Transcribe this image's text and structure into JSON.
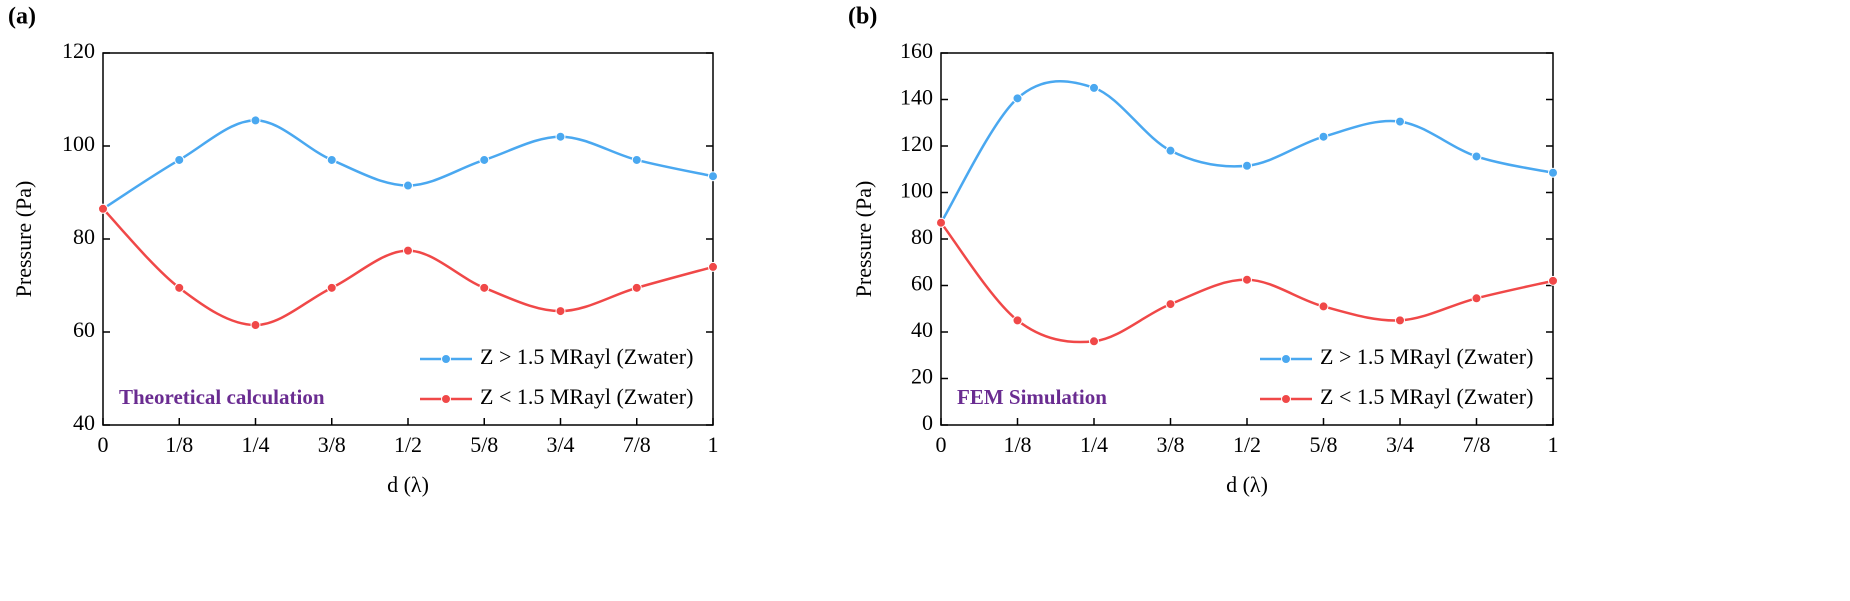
{
  "chart_data": [
    {
      "type": "line",
      "panel_label": "(a)",
      "xlabel": "d (λ)",
      "ylabel": "Pressure (Pa)",
      "annotation": "Theoretical calculation",
      "categories": [
        "0",
        "1/8",
        "1/4",
        "3/8",
        "1/2",
        "5/8",
        "3/4",
        "7/8",
        "1"
      ],
      "ylim": [
        40,
        120
      ],
      "yticks": [
        40,
        60,
        80,
        100,
        120
      ],
      "legend": "lower right",
      "series": [
        {
          "name": "Z > 1.5 MRayl (Zwater)",
          "color": "#4aa8f0",
          "values": [
            86.5,
            97,
            105.5,
            97,
            91.5,
            97,
            102,
            97,
            93.5
          ]
        },
        {
          "name": "Z < 1.5 MRayl (Zwater)",
          "color": "#f04848",
          "values": [
            86.5,
            69.5,
            61.5,
            69.5,
            77.5,
            69.5,
            64.5,
            69.5,
            74
          ]
        }
      ]
    },
    {
      "type": "line",
      "panel_label": "(b)",
      "xlabel": "d (λ)",
      "ylabel": "Pressure (Pa)",
      "annotation": "FEM Simulation",
      "categories": [
        "0",
        "1/8",
        "1/4",
        "3/8",
        "1/2",
        "5/8",
        "3/4",
        "7/8",
        "1"
      ],
      "ylim": [
        0,
        160
      ],
      "yticks": [
        0,
        20,
        40,
        60,
        80,
        100,
        120,
        140,
        160
      ],
      "legend": "lower right",
      "series": [
        {
          "name": "Z > 1.5 MRayl (Zwater)",
          "color": "#4aa8f0",
          "values": [
            87,
            140.5,
            145,
            118,
            111.5,
            124,
            130.5,
            115.5,
            108.5
          ]
        },
        {
          "name": "Z < 1.5 MRayl (Zwater)",
          "color": "#f04848",
          "values": [
            87,
            45,
            36,
            52,
            62.5,
            51,
            45,
            54.5,
            62
          ]
        }
      ]
    }
  ]
}
